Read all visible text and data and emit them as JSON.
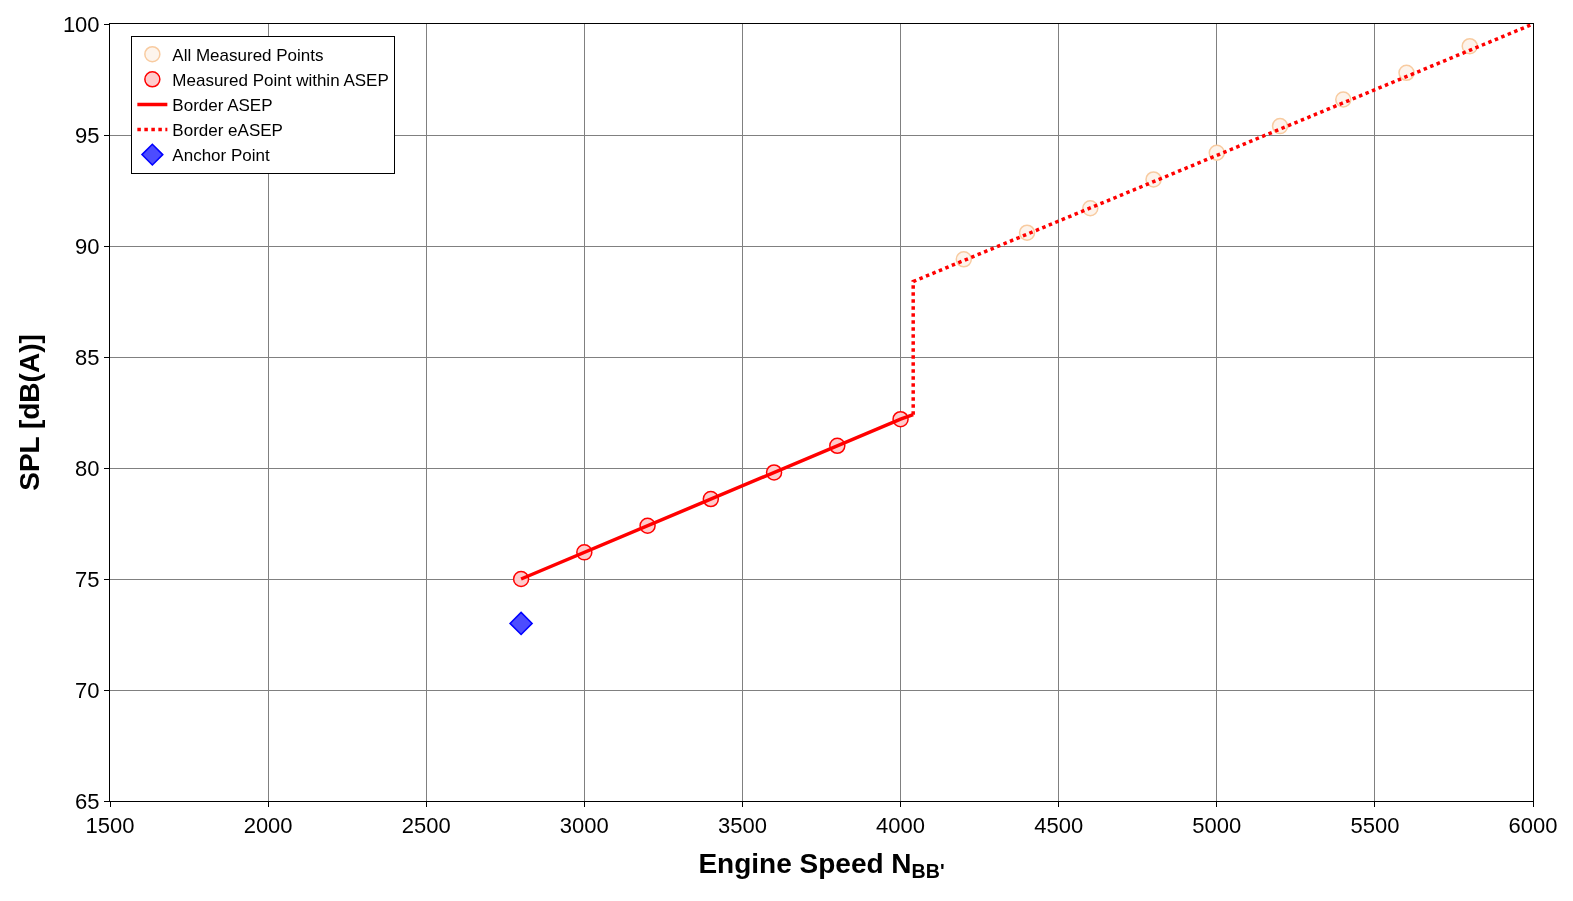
{
  "chart_data": {
    "type": "scatter",
    "xlabel": "Engine Speed N$_{BB'}$",
    "ylabel": "SPL [dB(A)]",
    "xlim": [
      1500,
      6000
    ],
    "xticks": [
      1500,
      2000,
      2500,
      3000,
      3500,
      4000,
      4500,
      5000,
      5500,
      6000
    ],
    "ylim": [
      65,
      100
    ],
    "yticks": [
      65,
      70,
      75,
      80,
      85,
      90,
      95,
      100
    ],
    "grid": true,
    "legend": "top left",
    "series": [
      {
        "name": "All Measured Points",
        "marker": "circle",
        "color": "#f8cba0",
        "x": [
          4200,
          4400,
          4600,
          4800,
          5000,
          5200,
          5400,
          5600,
          5800
        ],
        "values": [
          89.4,
          90.6,
          91.7,
          93.0,
          94.2,
          95.4,
          96.6,
          97.8,
          99.0
        ]
      },
      {
        "name": "Measured Point within ASEP",
        "marker": "circle",
        "color": "#ff0000",
        "x": [
          2800,
          3000,
          3200,
          3400,
          3600,
          3800,
          4000
        ],
        "values": [
          75.0,
          76.2,
          77.4,
          78.6,
          79.8,
          81.0,
          82.2
        ]
      },
      {
        "name": "Border ASEP",
        "type": "line",
        "line_style": "solid",
        "marker": "none",
        "color": "#ff0000",
        "x": [
          2800,
          4000,
          4040
        ],
        "values": [
          75.0,
          82.2,
          82.4
        ]
      },
      {
        "name": "Border eASEP",
        "type": "line",
        "line_style": "dotted",
        "marker": "none",
        "color": "#ff0000",
        "x": [
          4040,
          4040,
          6000
        ],
        "values": [
          82.4,
          88.4,
          100
        ]
      },
      {
        "name": "Anchor Point",
        "marker": "diamond",
        "color": "#0000ff",
        "x": [
          2800
        ],
        "values": [
          73.0
        ]
      }
    ]
  }
}
